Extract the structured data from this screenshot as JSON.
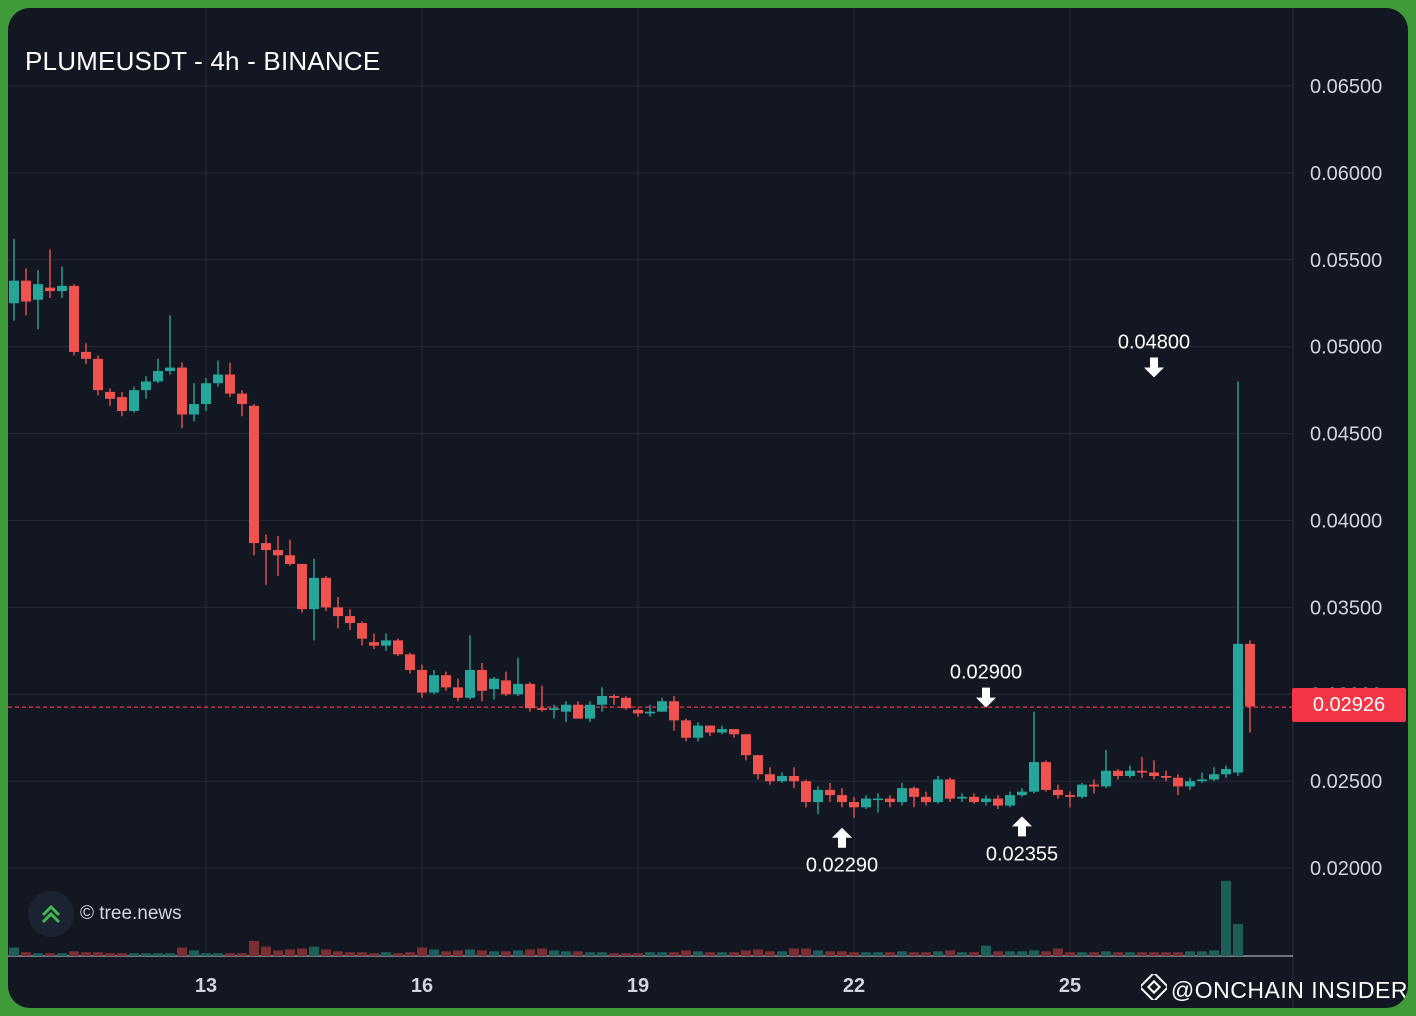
{
  "chart": {
    "title": "PLUMEUSDT - 4h - BINANCE",
    "credit": "© tree.news",
    "watermark": "@ONCHAIN INSIDER",
    "last_price_label": "0.02926",
    "icons": [
      "tree-news-logo-icon",
      "binance-logo-icon",
      "arrow-down-icon",
      "arrow-up-icon"
    ],
    "colors": {
      "background": "#131722",
      "frame": "#3f9a3a",
      "up": "#26a69a",
      "down": "#ef5350",
      "grid": "#252a36",
      "axis_text": "#d1d4dc",
      "price_line": "#f23645"
    }
  },
  "chart_data": {
    "type": "candlestick",
    "title": "PLUMEUSDT - 4h - BINANCE",
    "timeframe": "4h",
    "x_ticks": [
      "13",
      "16",
      "19",
      "22",
      "25"
    ],
    "y_ticks": [
      "0.06500",
      "0.06000",
      "0.05500",
      "0.05000",
      "0.04500",
      "0.04000",
      "0.03500",
      "0.03000",
      "0.02500",
      "0.02000"
    ],
    "ylim": [
      0.0175,
      0.068
    ],
    "last_price": 0.02926,
    "annotations": [
      {
        "label": "0.04800",
        "value": 0.048,
        "candle_index": 95,
        "arrow": "down"
      },
      {
        "label": "0.02900",
        "value": 0.029,
        "candle_index": 81,
        "arrow": "down"
      },
      {
        "label": "0.02290",
        "value": 0.0229,
        "candle_index": 69,
        "arrow": "up"
      },
      {
        "label": "0.02355",
        "value": 0.02355,
        "candle_index": 84,
        "arrow": "up"
      }
    ],
    "candles": [
      [
        0.0525,
        0.0538,
        0.0562,
        0.0515
      ],
      [
        0.0538,
        0.0526,
        0.0545,
        0.0518
      ],
      [
        0.0527,
        0.0536,
        0.0544,
        0.051
      ],
      [
        0.0534,
        0.0532,
        0.0556,
        0.0528
      ],
      [
        0.0532,
        0.0535,
        0.0546,
        0.0528
      ],
      [
        0.0535,
        0.0497,
        0.0536,
        0.0495
      ],
      [
        0.0497,
        0.0493,
        0.0502,
        0.049
      ],
      [
        0.0493,
        0.0475,
        0.0495,
        0.0472
      ],
      [
        0.0474,
        0.047,
        0.0476,
        0.0466
      ],
      [
        0.0471,
        0.0463,
        0.0474,
        0.046
      ],
      [
        0.0463,
        0.0475,
        0.0477,
        0.0462
      ],
      [
        0.0475,
        0.048,
        0.0483,
        0.047
      ],
      [
        0.048,
        0.0486,
        0.0493,
        0.0479
      ],
      [
        0.0486,
        0.0488,
        0.0518,
        0.0484
      ],
      [
        0.0488,
        0.0461,
        0.0491,
        0.0453
      ],
      [
        0.0461,
        0.0467,
        0.0479,
        0.0457
      ],
      [
        0.0467,
        0.0479,
        0.0482,
        0.0463
      ],
      [
        0.0479,
        0.0484,
        0.0492,
        0.0477
      ],
      [
        0.0484,
        0.0473,
        0.0491,
        0.0471
      ],
      [
        0.0473,
        0.0467,
        0.0475,
        0.046
      ],
      [
        0.0466,
        0.0387,
        0.0467,
        0.038
      ],
      [
        0.0387,
        0.0383,
        0.0392,
        0.0363
      ],
      [
        0.0383,
        0.038,
        0.0391,
        0.0368
      ],
      [
        0.038,
        0.0375,
        0.0389,
        0.0374
      ],
      [
        0.0375,
        0.0349,
        0.0375,
        0.0347
      ],
      [
        0.0349,
        0.0367,
        0.0378,
        0.0331
      ],
      [
        0.0367,
        0.035,
        0.0368,
        0.0348
      ],
      [
        0.035,
        0.0345,
        0.0356,
        0.0338
      ],
      [
        0.0345,
        0.0341,
        0.0349,
        0.0337
      ],
      [
        0.0341,
        0.0332,
        0.0342,
        0.0328
      ],
      [
        0.033,
        0.0328,
        0.0335,
        0.0326
      ],
      [
        0.0328,
        0.0331,
        0.0335,
        0.0325
      ],
      [
        0.0331,
        0.0323,
        0.0332,
        0.0322
      ],
      [
        0.0323,
        0.0314,
        0.0324,
        0.0312
      ],
      [
        0.0314,
        0.0301,
        0.0317,
        0.0298
      ],
      [
        0.0301,
        0.0311,
        0.0314,
        0.03
      ],
      [
        0.0311,
        0.0304,
        0.0313,
        0.0302
      ],
      [
        0.0304,
        0.0298,
        0.0309,
        0.0296
      ],
      [
        0.0298,
        0.0314,
        0.0334,
        0.0297
      ],
      [
        0.0314,
        0.0302,
        0.0318,
        0.0296
      ],
      [
        0.0303,
        0.0309,
        0.031,
        0.0297
      ],
      [
        0.0308,
        0.03,
        0.0313,
        0.0299
      ],
      [
        0.03,
        0.0306,
        0.0321,
        0.0299
      ],
      [
        0.0306,
        0.0292,
        0.0307,
        0.029
      ],
      [
        0.0292,
        0.0291,
        0.0305,
        0.029
      ],
      [
        0.0291,
        0.0292,
        0.0294,
        0.0286
      ],
      [
        0.029,
        0.0294,
        0.0296,
        0.0284
      ],
      [
        0.0294,
        0.0286,
        0.0296,
        0.0286
      ],
      [
        0.0286,
        0.0294,
        0.0296,
        0.0284
      ],
      [
        0.0294,
        0.0299,
        0.0304,
        0.029
      ],
      [
        0.0299,
        0.0298,
        0.03,
        0.0294
      ],
      [
        0.0298,
        0.0292,
        0.0299,
        0.0291
      ],
      [
        0.0291,
        0.0289,
        0.0292,
        0.0287
      ],
      [
        0.0289,
        0.029,
        0.0294,
        0.0287
      ],
      [
        0.029,
        0.0296,
        0.0298,
        0.029
      ],
      [
        0.0296,
        0.0285,
        0.0299,
        0.0279
      ],
      [
        0.0285,
        0.0275,
        0.0286,
        0.0273
      ],
      [
        0.0275,
        0.0282,
        0.0284,
        0.0273
      ],
      [
        0.0282,
        0.0278,
        0.0282,
        0.0276
      ],
      [
        0.0278,
        0.028,
        0.0282,
        0.0277
      ],
      [
        0.028,
        0.0277,
        0.028,
        0.0275
      ],
      [
        0.0277,
        0.0265,
        0.0277,
        0.0262
      ],
      [
        0.0265,
        0.0254,
        0.0265,
        0.0251
      ],
      [
        0.0254,
        0.025,
        0.0258,
        0.0248
      ],
      [
        0.025,
        0.0253,
        0.0255,
        0.0249
      ],
      [
        0.0253,
        0.025,
        0.0258,
        0.0246
      ],
      [
        0.025,
        0.0238,
        0.0251,
        0.0235
      ],
      [
        0.0238,
        0.0245,
        0.0247,
        0.0231
      ],
      [
        0.0245,
        0.0242,
        0.0249,
        0.0238
      ],
      [
        0.0242,
        0.0238,
        0.0246,
        0.0235
      ],
      [
        0.0238,
        0.0235,
        0.0241,
        0.0229
      ],
      [
        0.0235,
        0.024,
        0.0242,
        0.0234
      ],
      [
        0.024,
        0.024,
        0.0243,
        0.0232
      ],
      [
        0.024,
        0.0238,
        0.0242,
        0.0235
      ],
      [
        0.0238,
        0.0246,
        0.0249,
        0.0236
      ],
      [
        0.0246,
        0.0241,
        0.0247,
        0.0235
      ],
      [
        0.0241,
        0.0238,
        0.0244,
        0.0236
      ],
      [
        0.0238,
        0.0251,
        0.0253,
        0.0237
      ],
      [
        0.0251,
        0.024,
        0.0252,
        0.0238
      ],
      [
        0.024,
        0.0241,
        0.0243,
        0.0238
      ],
      [
        0.0241,
        0.0238,
        0.0243,
        0.0237
      ],
      [
        0.0238,
        0.024,
        0.0242,
        0.0236
      ],
      [
        0.024,
        0.0236,
        0.0242,
        0.0234
      ],
      [
        0.0236,
        0.0242,
        0.0244,
        0.0235
      ],
      [
        0.0242,
        0.0244,
        0.0246,
        0.0241
      ],
      [
        0.0244,
        0.0261,
        0.029,
        0.0243
      ],
      [
        0.0261,
        0.0245,
        0.0262,
        0.0244
      ],
      [
        0.0245,
        0.0242,
        0.0248,
        0.024
      ],
      [
        0.0242,
        0.0241,
        0.0244,
        0.0235
      ],
      [
        0.0241,
        0.0248,
        0.0249,
        0.024
      ],
      [
        0.0248,
        0.0247,
        0.0251,
        0.0243
      ],
      [
        0.0247,
        0.0256,
        0.0268,
        0.0246
      ],
      [
        0.0256,
        0.0253,
        0.0257,
        0.0251
      ],
      [
        0.0253,
        0.0256,
        0.0259,
        0.0252
      ],
      [
        0.0256,
        0.0255,
        0.0264,
        0.0252
      ],
      [
        0.0255,
        0.0253,
        0.0262,
        0.0251
      ],
      [
        0.0253,
        0.0252,
        0.0256,
        0.025
      ],
      [
        0.0252,
        0.0247,
        0.0254,
        0.0242
      ],
      [
        0.0247,
        0.025,
        0.0252,
        0.0245
      ],
      [
        0.025,
        0.0251,
        0.0255,
        0.0249
      ],
      [
        0.0251,
        0.0254,
        0.0258,
        0.025
      ],
      [
        0.0254,
        0.0257,
        0.0259,
        0.0252
      ],
      [
        0.0255,
        0.0329,
        0.048,
        0.0253
      ],
      [
        0.0329,
        0.0293,
        0.0331,
        0.0278
      ]
    ],
    "volume_relative": [
      0.9,
      0.4,
      0.3,
      0.3,
      0.3,
      0.5,
      0.4,
      0.4,
      0.3,
      0.3,
      0.3,
      0.3,
      0.3,
      0.3,
      0.9,
      0.6,
      0.3,
      0.3,
      0.3,
      0.3,
      1.6,
      1.0,
      0.6,
      0.7,
      0.8,
      1.0,
      0.7,
      0.5,
      0.4,
      0.4,
      0.3,
      0.4,
      0.3,
      0.4,
      0.9,
      0.7,
      0.5,
      0.6,
      0.7,
      0.6,
      0.5,
      0.5,
      0.6,
      0.7,
      0.8,
      0.6,
      0.5,
      0.5,
      0.4,
      0.4,
      0.3,
      0.3,
      0.3,
      0.4,
      0.4,
      0.4,
      0.6,
      0.5,
      0.4,
      0.4,
      0.4,
      0.6,
      0.7,
      0.5,
      0.5,
      0.8,
      0.8,
      0.6,
      0.5,
      0.5,
      0.4,
      0.4,
      0.4,
      0.4,
      0.5,
      0.4,
      0.4,
      0.5,
      0.6,
      0.4,
      0.4,
      1.1,
      0.5,
      0.5,
      0.5,
      0.6,
      0.5,
      0.8,
      0.4,
      0.4,
      0.4,
      0.5,
      0.4,
      0.4,
      0.4,
      0.4,
      0.4,
      0.4,
      0.5,
      0.5,
      0.6,
      8.0,
      3.4
    ]
  }
}
